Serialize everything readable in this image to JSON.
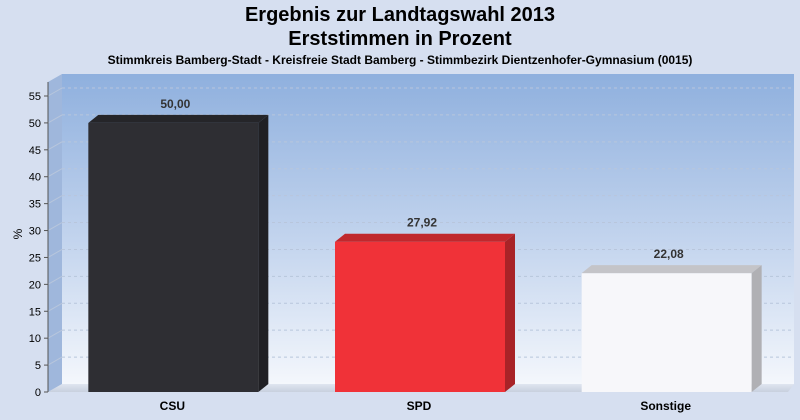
{
  "chart_data": {
    "type": "bar",
    "title": "Ergebnis zur Landtagswahl 2013",
    "subtitle": "Erststimmen in Prozent",
    "note": "Stimmkreis Bamberg-Stadt - Kreisfreie Stadt Bamberg - Stimmbezirk Dientzenhofer-Gymnasium (0015)",
    "ylabel": "%",
    "xlabel": "",
    "ylim": [
      0,
      58
    ],
    "yticks": [
      0,
      5,
      10,
      15,
      20,
      25,
      30,
      35,
      40,
      45,
      50,
      55
    ],
    "categories": [
      "CSU",
      "SPD",
      "Sonstige"
    ],
    "values": [
      50.0,
      27.92,
      22.08
    ],
    "value_labels": [
      "50,00",
      "27,92",
      "22,08"
    ],
    "colors": [
      "#2e2e33",
      "#f03238",
      "#f7f7fa"
    ],
    "grid": true
  }
}
